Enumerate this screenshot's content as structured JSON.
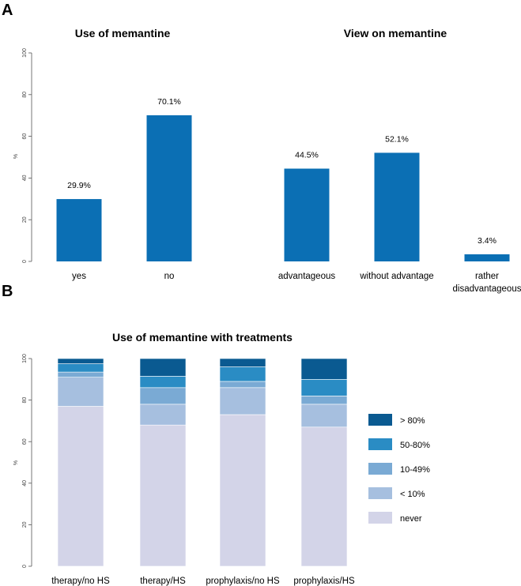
{
  "panel_a_label": "A",
  "panel_b_label": "B",
  "chart_data": [
    {
      "type": "bar",
      "title": "Use of memantine",
      "ylabel": "%",
      "ylim": [
        0,
        100
      ],
      "yticks": [
        "0",
        "20",
        "40",
        "60",
        "80",
        "100"
      ],
      "categories": [
        "yes",
        "no"
      ],
      "values": [
        29.9,
        70.1
      ],
      "data_labels": [
        "29.9%",
        "70.1%"
      ],
      "color": "#0b6fb4"
    },
    {
      "type": "bar",
      "title": "View on memantine",
      "categories": [
        "advantageous",
        "without advantage",
        "rather disadvantageous"
      ],
      "category_lines": [
        [
          "advantageous"
        ],
        [
          "without advantage"
        ],
        [
          "rather",
          "disadvantageous"
        ]
      ],
      "values": [
        44.5,
        52.1,
        3.4
      ],
      "data_labels": [
        "44.5%",
        "52.1%",
        "3.4%"
      ],
      "color": "#0b6fb4"
    },
    {
      "type": "bar",
      "stacked": true,
      "title": "Use of memantine with treatments",
      "ylabel": "%",
      "ylim": [
        0,
        100
      ],
      "yticks": [
        "0",
        "20",
        "40",
        "60",
        "80",
        "100"
      ],
      "categories": [
        "therapy/no HS",
        "therapy/HS",
        "prophylaxis/no HS",
        "prophylaxis/HS"
      ],
      "series": [
        {
          "name": "never",
          "color": "#d3d4e8",
          "values": [
            77,
            68,
            73,
            67
          ]
        },
        {
          "name": "< 10%",
          "color": "#a6bfdf",
          "values": [
            14,
            10,
            13,
            11
          ]
        },
        {
          "name": "10-49%",
          "color": "#7aaad4",
          "values": [
            2.5,
            8,
            3,
            4
          ]
        },
        {
          "name": "50-80%",
          "color": "#2a8cc4",
          "values": [
            4,
            5.5,
            7,
            8
          ]
        },
        {
          "name": "> 80%",
          "color": "#0a5a91",
          "values": [
            2.5,
            8.5,
            4,
            10
          ]
        }
      ],
      "legend_order": [
        "> 80%",
        "50-80%",
        "10-49%",
        "< 10%",
        "never"
      ],
      "legend_position": "right"
    }
  ]
}
